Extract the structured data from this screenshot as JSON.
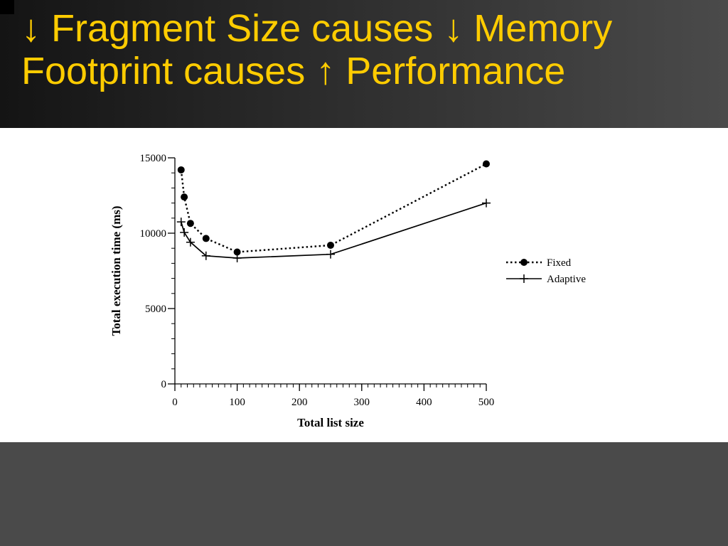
{
  "slide": {
    "title_line1": "↓ Fragment Size causes ↓ Memory",
    "title_line2": "Footprint causes ↑ Performance",
    "title_color": "#FFCC00",
    "header_background": "#1a1a1a",
    "footer_background": "#4a4a4a"
  },
  "chart_data": {
    "type": "line",
    "title": "",
    "xlabel": "Total list size",
    "ylabel": "Total execution time (ms)",
    "xlim": [
      0,
      500
    ],
    "ylim": [
      0,
      15000
    ],
    "x_ticks": [
      0,
      100,
      200,
      300,
      400,
      500
    ],
    "y_ticks": [
      0,
      5000,
      10000,
      15000
    ],
    "grid": false,
    "legend_position": "right",
    "series": [
      {
        "name": "Fixed",
        "style": "dotted",
        "marker": "circle",
        "x": [
          10,
          15,
          25,
          50,
          100,
          250,
          500
        ],
        "y": [
          14200,
          12400,
          10650,
          9650,
          8750,
          9200,
          14600
        ]
      },
      {
        "name": "Adaptive",
        "style": "solid",
        "marker": "plus",
        "x": [
          10,
          15,
          25,
          50,
          100,
          250,
          500
        ],
        "y": [
          10750,
          10050,
          9400,
          8500,
          8350,
          8600,
          12000
        ]
      }
    ]
  }
}
